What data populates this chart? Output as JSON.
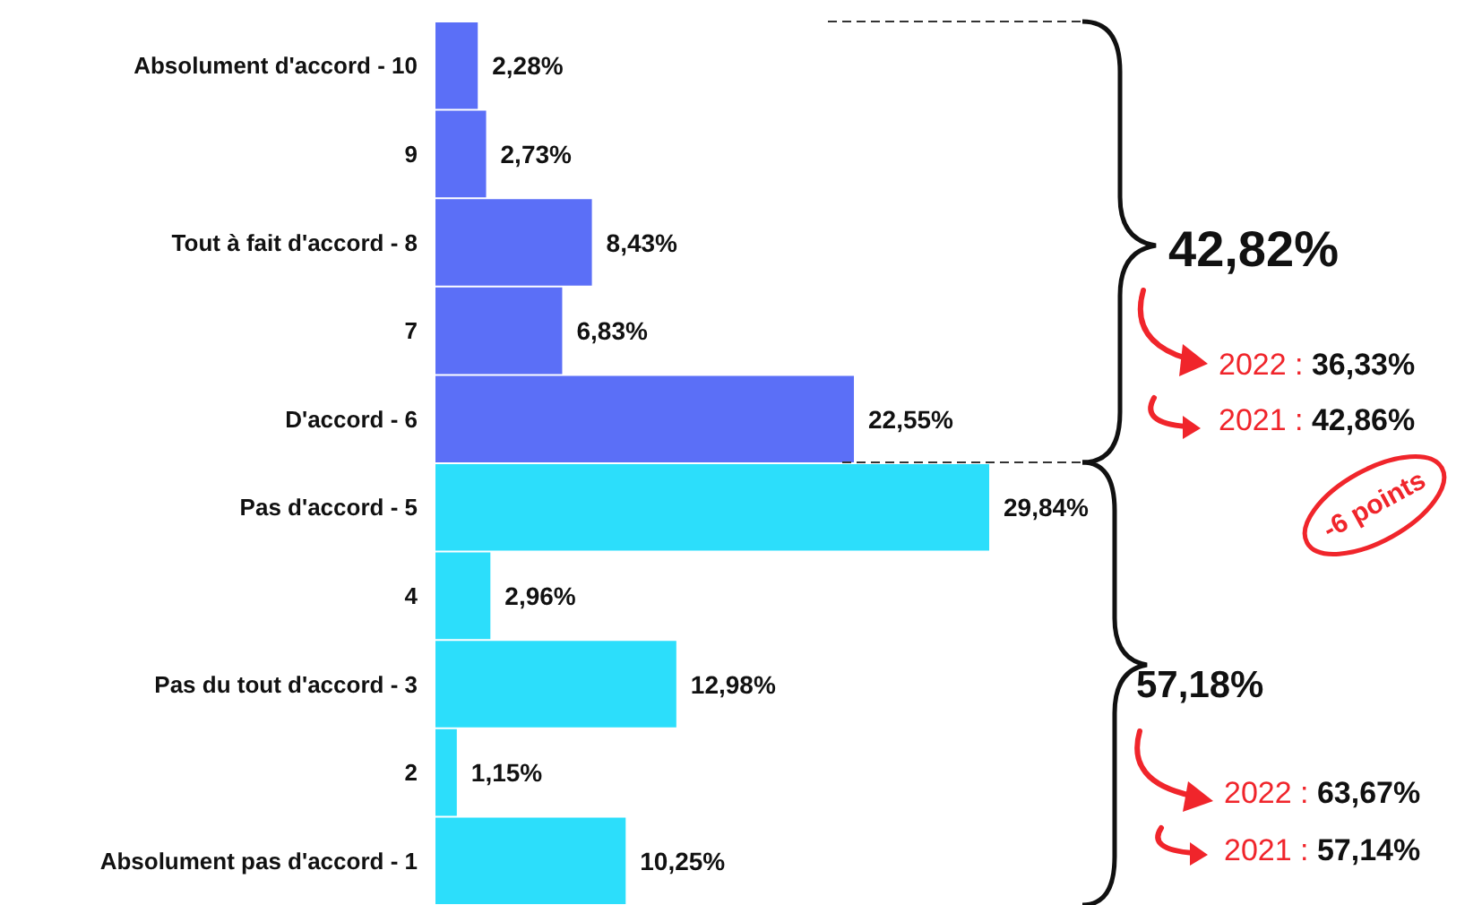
{
  "chart_data": {
    "type": "bar",
    "orientation": "horizontal",
    "categories": [
      "Absolument d'accord - 10",
      "9",
      "Tout à fait d'accord - 8",
      "7",
      "D'accord - 6",
      "Pas d'accord - 5",
      "4",
      "Pas du tout d'accord - 3",
      "2",
      "Absolument pas d'accord - 1"
    ],
    "values": [
      2.28,
      2.73,
      8.43,
      6.83,
      22.55,
      29.84,
      2.96,
      12.98,
      1.15,
      10.25
    ],
    "colors": [
      "#5b6ff7",
      "#5b6ff7",
      "#5b6ff7",
      "#5b6ff7",
      "#5b6ff7",
      "#2cdefb",
      "#2cdefb",
      "#2cdefb",
      "#2cdefb",
      "#2cdefb"
    ],
    "value_labels": [
      "2,28%",
      "2,73%",
      "8,43%",
      "6,83%",
      "22,55%",
      "29,84%",
      "2,96%",
      "12,98%",
      "1,15%",
      "10,25%"
    ],
    "annotations": [
      "42,82%",
      "2022 : 36,33%",
      "2021 : 42,86%",
      "-6 points",
      "57,18%",
      "2022 : 63,67%",
      "2021 : 57,14%"
    ]
  }
}
